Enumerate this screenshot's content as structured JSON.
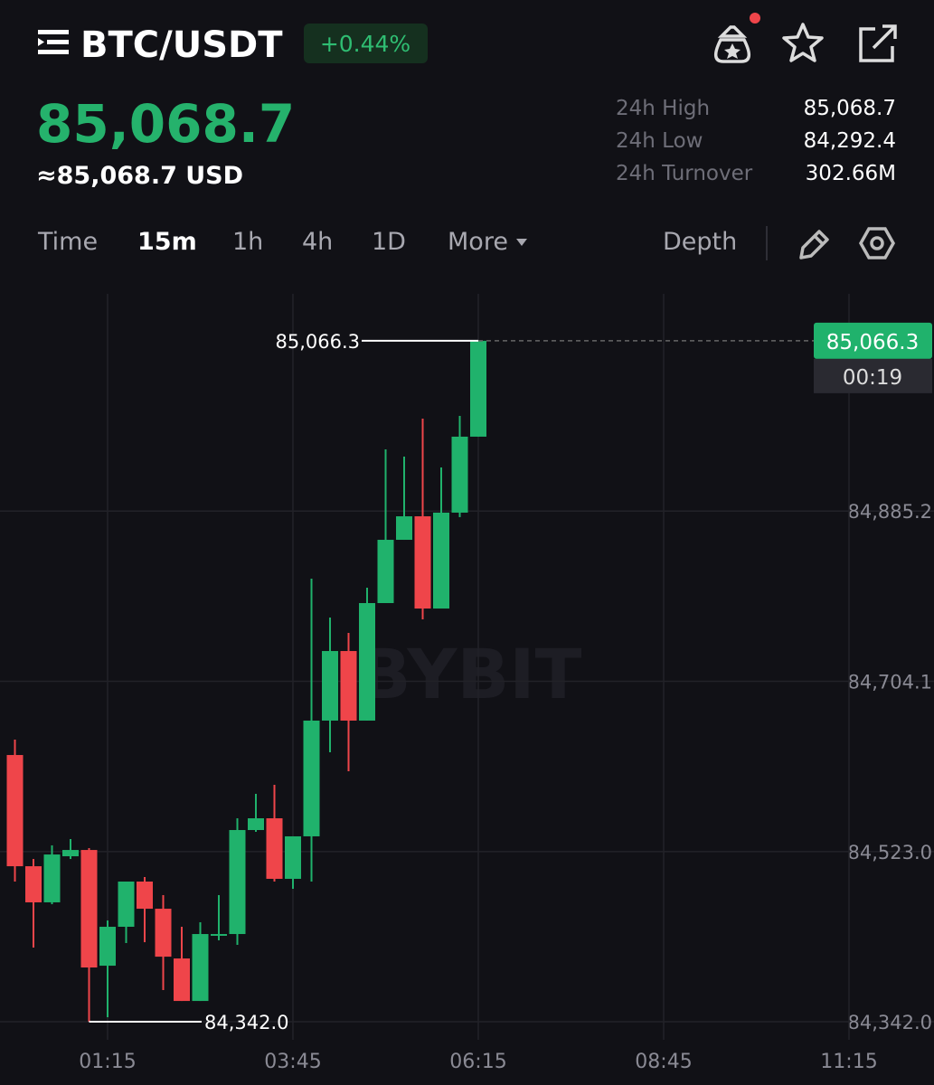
{
  "header": {
    "symbol": "BTC/USDT",
    "change": "+0.44%",
    "price": "85,068.7",
    "price_usd": "≈85,068.7 USD"
  },
  "stats": [
    {
      "label": "24h High",
      "value": "85,068.7"
    },
    {
      "label": "24h Low",
      "value": "84,292.4"
    },
    {
      "label": "24h Turnover",
      "value": "302.66M"
    }
  ],
  "toolbar": {
    "tabs": [
      "Time",
      "15m",
      "1h",
      "4h",
      "1D",
      "More"
    ],
    "depth": "Depth"
  },
  "chart_data": {
    "type": "candlestick",
    "categories": [
      null,
      null,
      null,
      null,
      null,
      "01:15",
      null,
      null,
      null,
      null,
      null,
      null,
      null,
      null,
      null,
      "03:45",
      null,
      null,
      null,
      null,
      null,
      null,
      null,
      null,
      null,
      "06:15",
      null,
      null,
      null,
      null,
      null,
      null,
      null,
      null,
      null,
      "08:45",
      null,
      null,
      null,
      null,
      null,
      null,
      null,
      null,
      null,
      "11:15"
    ],
    "open": [
      84625.7,
      84507.4,
      84469.0,
      84518.0,
      84524.7,
      84401.6,
      84443.0,
      84491.1,
      84462.2,
      84409.3,
      84364.1,
      84433.4,
      84435.3,
      84545.9,
      84558.4,
      84494.0,
      84539.2,
      84662.3,
      84736.3,
      84662.3,
      84787.3,
      84854.6,
      84879.6,
      84781.5,
      84883.5,
      84964.3,
      null,
      null,
      null,
      null,
      null,
      null,
      null,
      null,
      null,
      null,
      null,
      null,
      null,
      null,
      null,
      null,
      null,
      null,
      null,
      null
    ],
    "high": [
      84642.1,
      84515.1,
      84529.6,
      84536.3,
      84526.7,
      84449.7,
      84491.1,
      84495.9,
      84476.7,
      84443.0,
      84447.8,
      84476.7,
      84558.4,
      84584.4,
      84594.0,
      84539.2,
      84813.3,
      84771.9,
      84755.6,
      84803.7,
      84950.8,
      84943.1,
      84983.5,
      84931.6,
      84986.4,
      85066.3,
      null,
      null,
      null,
      null,
      null,
      null,
      null,
      null,
      null,
      null,
      null,
      null,
      null,
      null,
      null,
      null,
      null,
      null,
      null,
      null
    ],
    "low": [
      84491.1,
      84420.9,
      84467.0,
      84515.1,
      84342.0,
      84346.8,
      84425.7,
      84426.6,
      84375.7,
      84364.1,
      84364.1,
      84428.6,
      84423.8,
      84544.0,
      84491.1,
      84483.4,
      84491.1,
      84628.6,
      84608.4,
      84662.3,
      84787.3,
      84854.6,
      84770.0,
      84781.5,
      84878.7,
      84964.3,
      null,
      null,
      null,
      null,
      null,
      null,
      null,
      null,
      null,
      null,
      null,
      null,
      null,
      null,
      null,
      null,
      null,
      null,
      null,
      null
    ],
    "close": [
      84507.4,
      84469.0,
      84519.9,
      84524.7,
      84399.7,
      84443.0,
      84491.1,
      84462.2,
      84411.2,
      84364.1,
      84435.3,
      84435.3,
      84545.9,
      84558.4,
      84494.0,
      84539.2,
      84662.3,
      84736.3,
      84662.3,
      84787.3,
      84854.6,
      84879.6,
      84781.5,
      84883.5,
      84964.3,
      85066.3,
      null,
      null,
      null,
      null,
      null,
      null,
      null,
      null,
      null,
      null,
      null,
      null,
      null,
      null,
      null,
      null,
      null,
      null,
      null,
      null
    ],
    "up_color": "#20b26c",
    "down_color": "#ef454a",
    "ylim": [
      84322.8,
      85116.2
    ],
    "yticks": [
      {
        "value": 84342.0,
        "label": "84,342.0"
      },
      {
        "value": 84523.0,
        "label": "84,523.0"
      },
      {
        "value": 84704.1,
        "label": "84,704.1"
      },
      {
        "value": 84885.2,
        "label": "84,885.2"
      }
    ],
    "grid": true,
    "watermark": "BYBIT",
    "annotations": {
      "high_label": "85,066.3",
      "low_label": "84,342.0",
      "last_price_label": "85,066.3",
      "countdown": "00:19"
    }
  }
}
